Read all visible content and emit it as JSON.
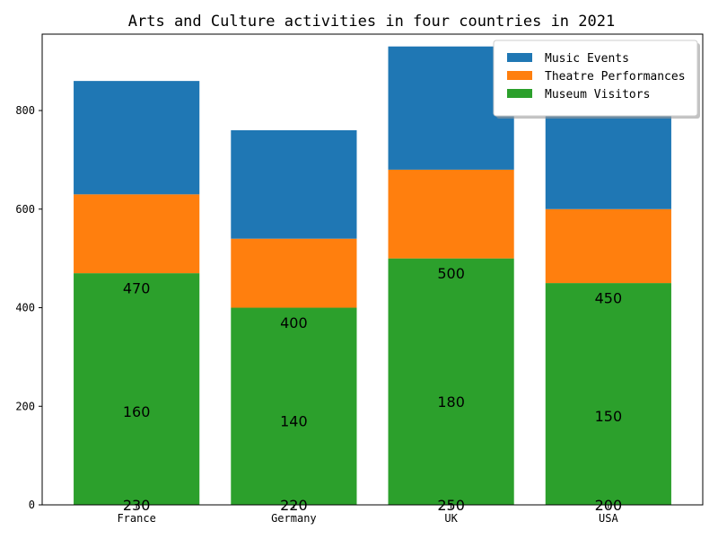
{
  "chart_data": {
    "type": "bar",
    "stacked": true,
    "title": "Arts and Culture activities in four countries in 2021",
    "xlabel": "",
    "ylabel": "",
    "categories": [
      "France",
      "Germany",
      "UK",
      "USA"
    ],
    "series": [
      {
        "name": "Museum Visitors",
        "values": [
          470,
          400,
          500,
          450
        ],
        "color": "#2ca02c"
      },
      {
        "name": "Theatre Performances",
        "values": [
          160,
          140,
          180,
          150
        ],
        "color": "#ff7f0e"
      },
      {
        "name": "Music Events",
        "values": [
          230,
          220,
          250,
          200
        ],
        "color": "#1f77b4"
      }
    ],
    "data_labels": [
      {
        "category": "France",
        "values": [
          "470",
          "160",
          "230"
        ]
      },
      {
        "category": "Germany",
        "values": [
          "400",
          "140",
          "220"
        ]
      },
      {
        "category": "UK",
        "values": [
          "500",
          "180",
          "250"
        ]
      },
      {
        "category": "USA",
        "values": [
          "450",
          "150",
          "200"
        ]
      }
    ],
    "ylim": [
      0,
      955
    ],
    "yticks": [
      0,
      200,
      400,
      600,
      800
    ],
    "ytick_labels": [
      "0",
      "200",
      "400",
      "600",
      "800"
    ],
    "legend": {
      "placement": "top-right",
      "entries": [
        "Music Events",
        "Theatre Performances",
        "Museum Visitors"
      ]
    },
    "grid": false
  }
}
